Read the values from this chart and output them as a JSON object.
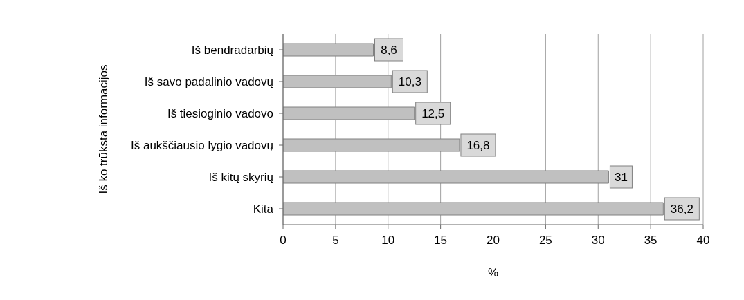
{
  "chart_data": {
    "type": "bar",
    "orientation": "horizontal",
    "xlabel": "%",
    "ylabel": "Iš ko trūksta informacijos",
    "categories": [
      "Iš bendradarbių",
      "Iš savo padalinio vadovų",
      "Iš tiesioginio vadovo",
      "Iš aukščiausio lygio vadovų",
      "Iš kitų skyrių",
      "Kita"
    ],
    "values": [
      8.6,
      10.3,
      12.5,
      16.8,
      31,
      36.2
    ],
    "value_labels": [
      "8,6",
      "10,3",
      "12,5",
      "16,8",
      "31",
      "36,2"
    ],
    "color": "#c0c0c0",
    "xlim": [
      0,
      40
    ],
    "xticks": [
      0,
      5,
      10,
      15,
      20,
      25,
      30,
      35,
      40
    ],
    "grid": "x"
  }
}
